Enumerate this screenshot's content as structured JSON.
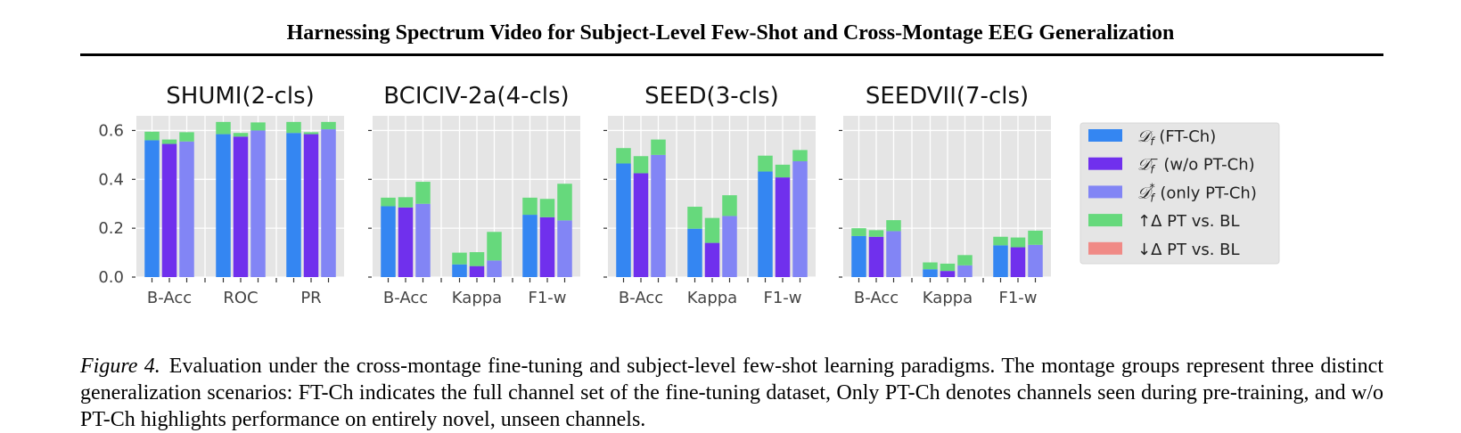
{
  "header": {
    "title": "Harnessing Spectrum Video for Subject-Level Few-Shot and Cross-Montage EEG Generalization"
  },
  "caption": {
    "label": "Figure 4.",
    "text": "Evaluation under the cross-montage fine-tuning and subject-level few-shot learning paradigms. The montage groups represent three distinct generalization scenarios: FT-Ch indicates the full channel set of the fine-tuning dataset, Only PT-Ch denotes channels seen during pre-training, and w/o PT-Ch highlights performance on entirely novel, unseen channels."
  },
  "colors": {
    "ft_ch": "#3486f2",
    "wo_pt_ch": "#7030ed",
    "only_pt_ch": "#8285f5",
    "delta_up": "#66d97c",
    "delta_down": "#f08a86",
    "panel_bg": "#e5e5e5",
    "grid": "#ffffff"
  },
  "legend": [
    {
      "key": "ft_ch",
      "text": "(FT-Ch)",
      "sup": "",
      "color": "#3486f2"
    },
    {
      "key": "wo_pt_ch",
      "text": "(w/o PT-Ch)",
      "sup": "−",
      "color": "#7030ed"
    },
    {
      "key": "only_pt_ch",
      "text": "(only PT-Ch)",
      "sup": "*",
      "color": "#8285f5"
    },
    {
      "key": "delta_up",
      "text": "↑Δ PT vs. BL",
      "sup": null,
      "color": "#66d97c"
    },
    {
      "key": "delta_down",
      "text": "↓Δ PT vs. BL",
      "sup": null,
      "color": "#f08a86"
    }
  ],
  "chart_data": [
    {
      "type": "bar",
      "title": "SHUMI(2-cls)",
      "categories": [
        "B-Acc",
        "ROC",
        "PR"
      ],
      "ylim": [
        0,
        0.66
      ],
      "yticks": [
        "0.0",
        "0.2",
        "0.4",
        "0.6"
      ],
      "series": [
        {
          "name": "D_f (FT-Ch)",
          "base": [
            0.56,
            0.585,
            0.59
          ],
          "delta": [
            0.035,
            0.05,
            0.045
          ]
        },
        {
          "name": "D_f^- (w/o PT-Ch)",
          "base": [
            0.545,
            0.575,
            0.585
          ],
          "delta": [
            0.018,
            0.015,
            0.008
          ]
        },
        {
          "name": "D_f^* (only PT-Ch)",
          "base": [
            0.555,
            0.6,
            0.605
          ],
          "delta": [
            0.038,
            0.033,
            0.03
          ]
        }
      ]
    },
    {
      "type": "bar",
      "title": "BCICIV-2a(4-cls)",
      "categories": [
        "B-Acc",
        "Kappa",
        "F1-w"
      ],
      "ylim": [
        0,
        0.66
      ],
      "yticks": [
        "",
        "",
        "",
        ""
      ],
      "series": [
        {
          "name": "D_f (FT-Ch)",
          "base": [
            0.29,
            0.052,
            0.255
          ],
          "delta": [
            0.035,
            0.048,
            0.07
          ]
        },
        {
          "name": "D_f^- (w/o PT-Ch)",
          "base": [
            0.285,
            0.045,
            0.245
          ],
          "delta": [
            0.042,
            0.057,
            0.075
          ]
        },
        {
          "name": "D_f^* (only PT-Ch)",
          "base": [
            0.3,
            0.068,
            0.232
          ],
          "delta": [
            0.09,
            0.117,
            0.15
          ]
        }
      ]
    },
    {
      "type": "bar",
      "title": "SEED(3-cls)",
      "categories": [
        "B-Acc",
        "Kappa",
        "F1-w"
      ],
      "ylim": [
        0,
        0.66
      ],
      "yticks": [
        "",
        "",
        "",
        ""
      ],
      "series": [
        {
          "name": "D_f (FT-Ch)",
          "base": [
            0.465,
            0.198,
            0.432
          ],
          "delta": [
            0.063,
            0.09,
            0.065
          ]
        },
        {
          "name": "D_f^- (w/o PT-Ch)",
          "base": [
            0.425,
            0.14,
            0.408
          ],
          "delta": [
            0.07,
            0.102,
            0.052
          ]
        },
        {
          "name": "D_f^* (only PT-Ch)",
          "base": [
            0.5,
            0.25,
            0.474
          ],
          "delta": [
            0.063,
            0.085,
            0.046
          ]
        }
      ]
    },
    {
      "type": "bar",
      "title": "SEEDVII(7-cls)",
      "categories": [
        "B-Acc",
        "Kappa",
        "F1-w"
      ],
      "ylim": [
        0,
        0.66
      ],
      "yticks": [
        "",
        "",
        "",
        ""
      ],
      "series": [
        {
          "name": "D_f (FT-Ch)",
          "base": [
            0.168,
            0.032,
            0.13
          ],
          "delta": [
            0.032,
            0.028,
            0.035
          ]
        },
        {
          "name": "D_f^- (w/o PT-Ch)",
          "base": [
            0.165,
            0.025,
            0.122
          ],
          "delta": [
            0.027,
            0.03,
            0.04
          ]
        },
        {
          "name": "D_f^* (only PT-Ch)",
          "base": [
            0.188,
            0.048,
            0.132
          ],
          "delta": [
            0.045,
            0.042,
            0.058
          ]
        }
      ]
    }
  ]
}
